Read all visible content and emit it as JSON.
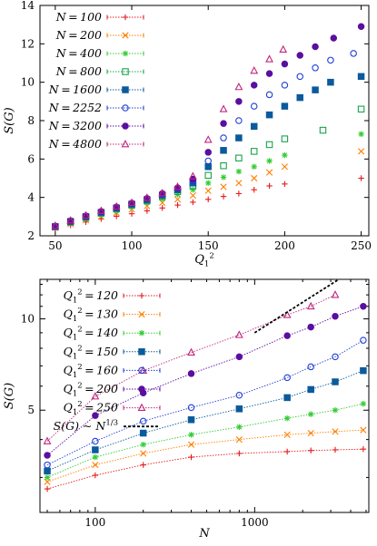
{
  "chart_data": [
    {
      "type": "scatter",
      "xlabel": "Q_1^2",
      "ylabel": "S(G)",
      "xlim": [
        40,
        255
      ],
      "ylim": [
        2,
        14
      ],
      "xticks": [
        50,
        100,
        150,
        200,
        250
      ],
      "yticks": [
        2,
        4,
        6,
        8,
        10,
        12,
        14
      ],
      "grid": false,
      "legend_position": "top-left",
      "series": [
        {
          "name": "N = 100",
          "color": "#e41a1c",
          "marker": "plus",
          "x": [
            50,
            60,
            70,
            80,
            90,
            100,
            110,
            120,
            130,
            140,
            150,
            160,
            170,
            180,
            190,
            200,
            250
          ],
          "y": [
            2.38,
            2.55,
            2.72,
            2.88,
            3.02,
            3.15,
            3.3,
            3.45,
            3.6,
            3.75,
            3.9,
            4.05,
            4.2,
            4.4,
            4.6,
            4.7,
            5.0
          ]
        },
        {
          "name": "N = 200",
          "color": "#ff7f00",
          "marker": "cross",
          "x": [
            50,
            60,
            70,
            80,
            90,
            100,
            110,
            120,
            130,
            140,
            150,
            160,
            170,
            180,
            190,
            200,
            250
          ],
          "y": [
            2.42,
            2.62,
            2.82,
            3.0,
            3.2,
            3.38,
            3.55,
            3.72,
            3.9,
            4.1,
            4.35,
            4.55,
            4.75,
            5.0,
            5.3,
            5.6,
            6.4
          ]
        },
        {
          "name": "N = 400",
          "color": "#33cc33",
          "marker": "star",
          "x": [
            50,
            60,
            70,
            80,
            90,
            100,
            110,
            120,
            130,
            140,
            150,
            160,
            170,
            180,
            190,
            200,
            250
          ],
          "y": [
            2.45,
            2.68,
            2.9,
            3.1,
            3.3,
            3.5,
            3.72,
            3.92,
            4.15,
            4.4,
            4.75,
            5.05,
            5.35,
            5.6,
            5.9,
            6.2,
            7.3
          ]
        },
        {
          "name": "N = 800",
          "color": "#19a34a",
          "marker": "square-open",
          "x": [
            50,
            60,
            70,
            80,
            90,
            100,
            110,
            120,
            130,
            140,
            150,
            160,
            170,
            180,
            190,
            200,
            225,
            250
          ],
          "y": [
            2.47,
            2.72,
            2.95,
            3.18,
            3.4,
            3.6,
            3.82,
            4.05,
            4.3,
            4.6,
            5.15,
            5.65,
            6.05,
            6.4,
            6.75,
            7.05,
            7.5,
            8.6
          ]
        },
        {
          "name": "N = 1600",
          "color": "#0a5a9c",
          "marker": "square",
          "x": [
            50,
            60,
            70,
            80,
            90,
            100,
            110,
            120,
            130,
            140,
            150,
            160,
            170,
            180,
            190,
            200,
            210,
            220,
            230,
            250
          ],
          "y": [
            2.48,
            2.75,
            3.0,
            3.22,
            3.45,
            3.65,
            3.88,
            4.12,
            4.4,
            4.75,
            5.6,
            6.45,
            7.1,
            7.7,
            8.3,
            8.75,
            9.2,
            9.6,
            10.0,
            10.3
          ]
        },
        {
          "name": "N = 2252",
          "color": "#1f3fd6",
          "marker": "circle-open",
          "x": [
            50,
            60,
            70,
            80,
            90,
            100,
            110,
            120,
            130,
            140,
            150,
            160,
            170,
            180,
            190,
            200,
            210,
            220,
            230,
            245
          ],
          "y": [
            2.5,
            2.77,
            3.02,
            3.25,
            3.48,
            3.68,
            3.92,
            4.15,
            4.45,
            4.85,
            5.9,
            7.1,
            8.0,
            8.75,
            9.35,
            9.85,
            10.3,
            10.75,
            11.15,
            11.5
          ]
        },
        {
          "name": "N = 3200",
          "color": "#5a0fa0",
          "marker": "circle",
          "x": [
            50,
            60,
            70,
            80,
            90,
            100,
            110,
            120,
            130,
            140,
            150,
            160,
            170,
            180,
            190,
            200,
            210,
            220,
            232,
            250
          ],
          "y": [
            2.5,
            2.78,
            3.04,
            3.27,
            3.5,
            3.7,
            3.95,
            4.2,
            4.5,
            4.95,
            6.35,
            7.85,
            9.0,
            9.85,
            10.45,
            10.95,
            11.4,
            11.85,
            12.3,
            12.9
          ]
        },
        {
          "name": "N = 4800",
          "color": "#c0267a",
          "marker": "triangle-open",
          "x": [
            50,
            60,
            70,
            80,
            90,
            100,
            110,
            120,
            130,
            140,
            150,
            160,
            170,
            180,
            190,
            199
          ],
          "y": [
            2.52,
            2.8,
            3.06,
            3.3,
            3.52,
            3.72,
            3.98,
            4.22,
            4.55,
            5.1,
            7.0,
            8.6,
            9.75,
            10.6,
            11.2,
            11.7
          ]
        }
      ]
    },
    {
      "type": "line",
      "xlabel": "N",
      "ylabel": "S(G)",
      "xscale": "log",
      "yscale": "log",
      "xlim": [
        45,
        5200
      ],
      "ylim": [
        2.3,
        13.5
      ],
      "xticks": [
        100,
        1000
      ],
      "yticks": [
        5,
        10
      ],
      "grid": false,
      "legend_position": "top-left",
      "x": [
        50,
        100,
        200,
        400,
        800,
        1600,
        2252,
        3200,
        4800
      ],
      "series": [
        {
          "name": "Q_1^2 = 120",
          "color": "#e41a1c",
          "marker": "plus",
          "y": [
            2.75,
            3.05,
            3.3,
            3.5,
            3.6,
            3.65,
            3.68,
            3.7,
            3.72
          ]
        },
        {
          "name": "Q_1^2 = 130",
          "color": "#ff7f00",
          "marker": "cross",
          "y": [
            2.9,
            3.3,
            3.6,
            3.85,
            4.0,
            4.15,
            4.2,
            4.25,
            4.3
          ]
        },
        {
          "name": "Q_1^2 = 140",
          "color": "#33cc33",
          "marker": "star",
          "y": [
            3.0,
            3.5,
            3.85,
            4.15,
            4.4,
            4.7,
            4.85,
            5.0,
            5.25
          ]
        },
        {
          "name": "Q_1^2 = 150",
          "color": "#0a5a9c",
          "marker": "square",
          "y": [
            3.15,
            3.7,
            4.2,
            4.65,
            5.05,
            5.5,
            5.85,
            6.2,
            6.75
          ]
        },
        {
          "name": "Q_1^2 = 160",
          "color": "#1f3fd6",
          "marker": "circle-open",
          "y": [
            3.3,
            3.95,
            4.6,
            5.1,
            5.6,
            6.4,
            6.95,
            7.5,
            8.5
          ]
        },
        {
          "name": "Q_1^2 = 200",
          "color": "#5a0fa0",
          "marker": "circle",
          "y": [
            3.55,
            4.8,
            5.7,
            6.6,
            7.5,
            8.8,
            9.4,
            10.2,
            11.0
          ]
        },
        {
          "name": "Q_1^2 = 250",
          "color": "#c0267a",
          "marker": "triangle-open",
          "x": [
            50,
            100,
            200,
            400,
            800,
            1600,
            2252,
            3200
          ],
          "y": [
            3.95,
            5.55,
            6.75,
            7.75,
            8.85,
            10.3,
            11.0,
            12.0
          ]
        },
        {
          "name": "S(G) ~ N^{1/3}",
          "color": "#000000",
          "marker": "none",
          "dashed": true,
          "x": [
            1000,
            5000
          ],
          "y": [
            9.0,
            15.4
          ]
        }
      ]
    }
  ]
}
